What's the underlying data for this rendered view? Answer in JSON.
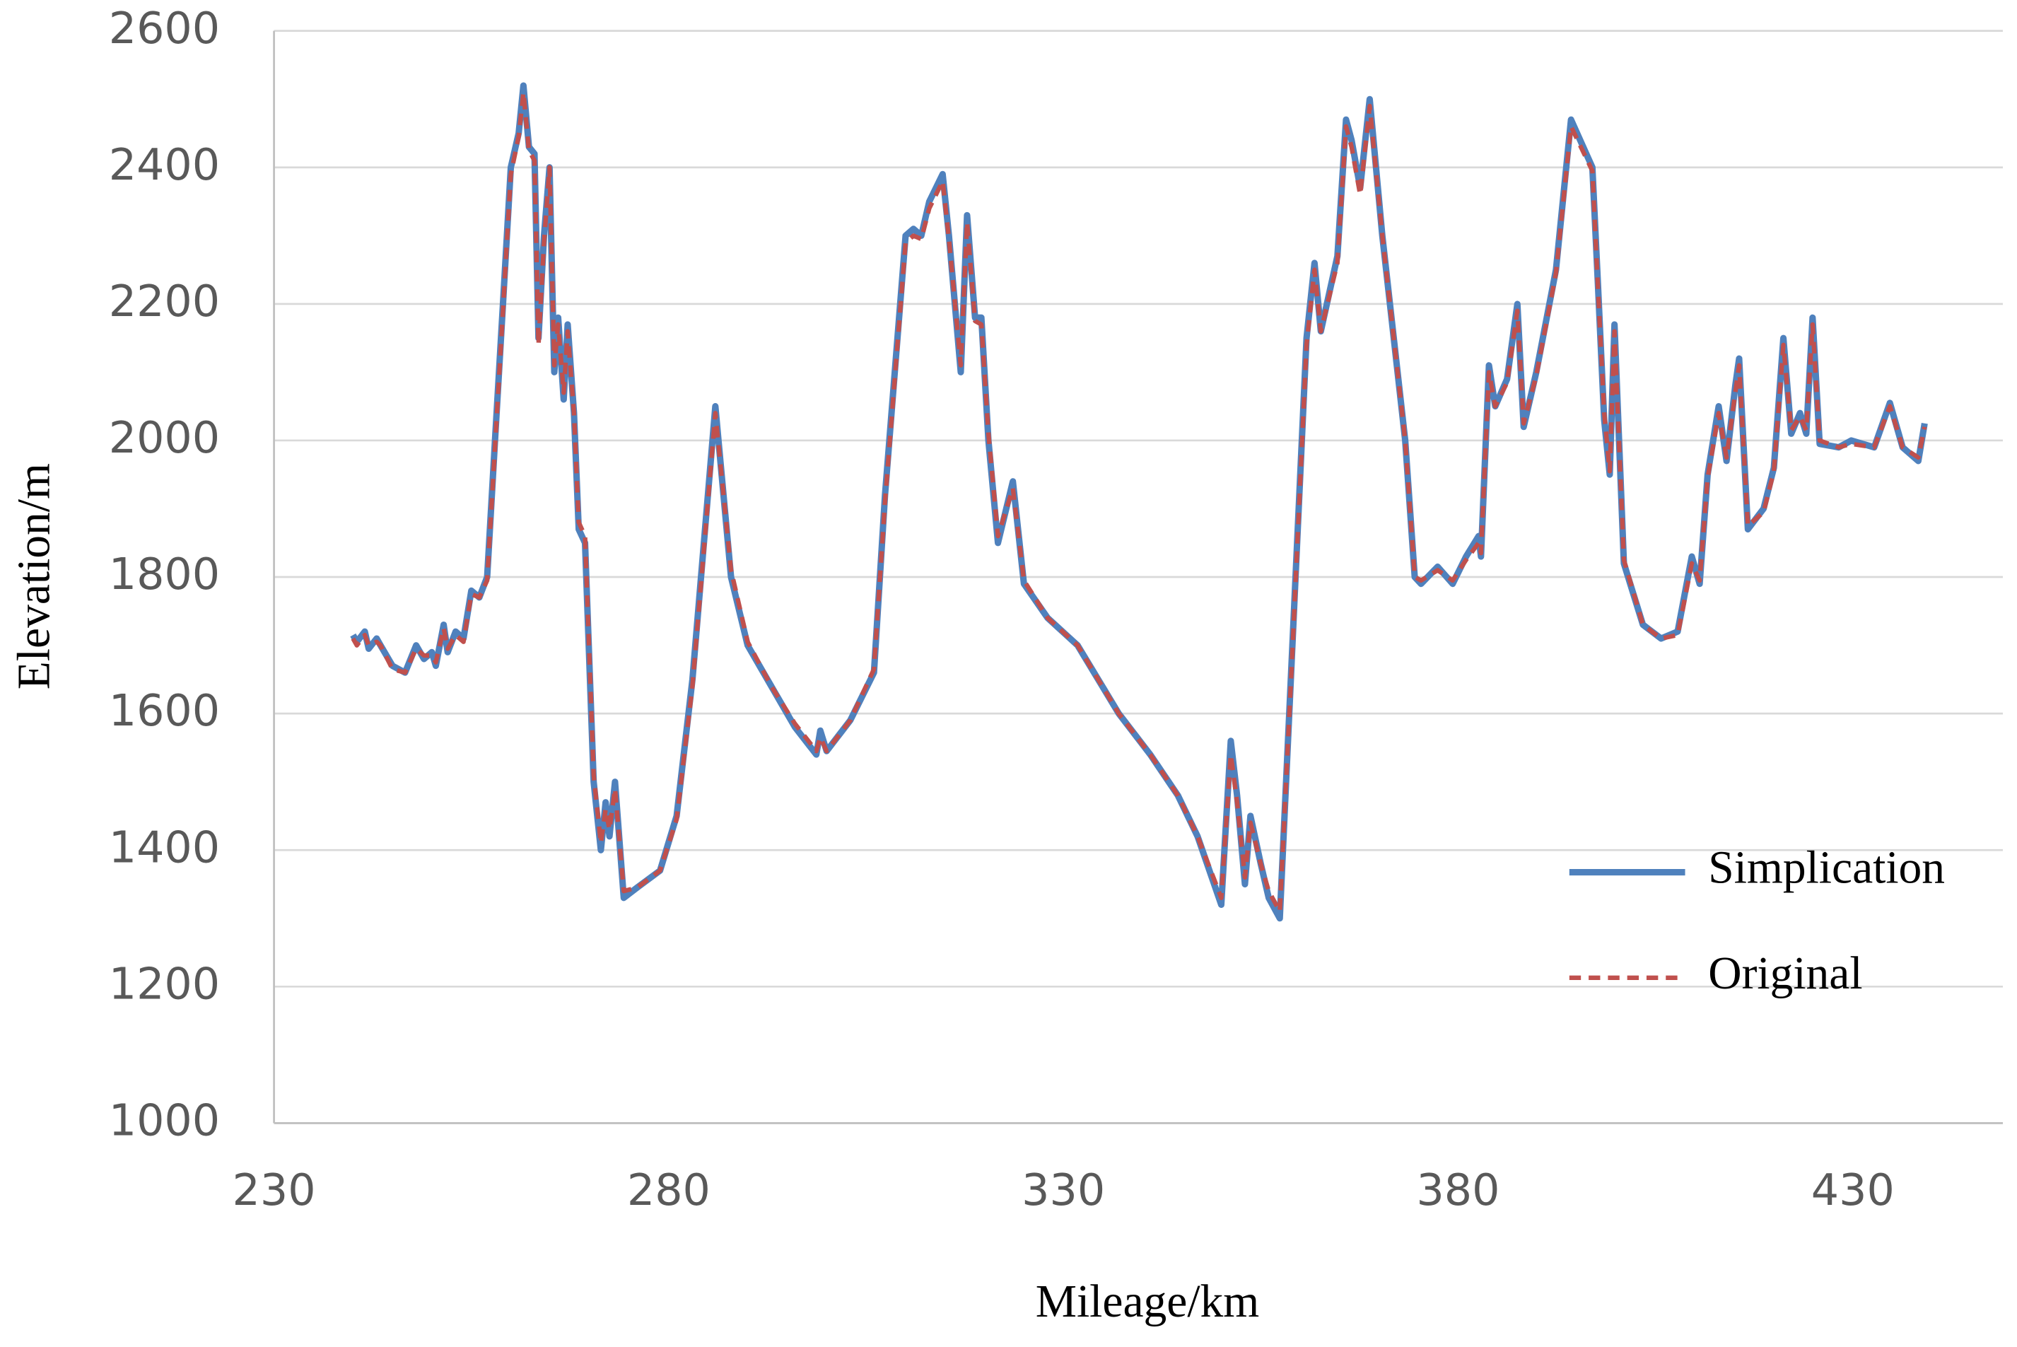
{
  "chart_data": {
    "type": "line",
    "x_label": "Mileage/km",
    "y_label": "Elevation/m",
    "x": [
      240,
      240.5,
      241.5,
      242,
      243,
      243.5,
      245,
      246.6,
      248,
      249,
      250,
      250.5,
      251.5,
      252,
      253,
      254,
      255,
      256,
      257,
      258,
      259,
      260,
      261,
      261.6,
      262.3,
      263,
      263.5,
      264.2,
      264.9,
      265.5,
      266,
      266.7,
      267.2,
      268,
      268.6,
      269.4,
      270.5,
      271.4,
      272,
      272.5,
      273.2,
      274.3,
      276,
      278.9,
      281,
      283,
      285.9,
      287.9,
      290,
      293,
      296,
      298.7,
      299.2,
      300,
      303,
      306,
      307.4,
      310,
      311,
      312,
      313,
      314.7,
      315.5,
      317,
      317.8,
      318.8,
      319.6,
      320.5,
      321.7,
      323.6,
      325,
      328,
      331.8,
      337,
      341,
      344.5,
      347,
      350,
      351.2,
      352,
      353,
      353.7,
      355,
      356,
      357.4,
      359,
      360.8,
      361.8,
      362.6,
      364.7,
      365.8,
      366.5,
      367.6,
      368.8,
      370.4,
      373.3,
      374.5,
      375.3,
      377.4,
      379.3,
      381,
      382.6,
      382.9,
      383.9,
      384.7,
      386.2,
      387.5,
      388.3,
      389.9,
      392.4,
      394.3,
      397,
      397.7,
      398.5,
      399.2,
      399.8,
      401,
      403.4,
      405.7,
      407.8,
      409.6,
      410.6,
      411.6,
      413,
      414,
      415.1,
      415.6,
      416.7,
      418.7,
      420,
      421.2,
      422.2,
      423.3,
      424.1,
      424.9,
      425.8,
      428.2,
      429.8,
      432.7,
      434.7,
      436.3,
      438.3,
      439.1
    ],
    "series": [
      {
        "name": "Simplication",
        "color": "#4f81bd",
        "values": [
          1715,
          1705,
          1720,
          1695,
          1710,
          1700,
          1670,
          1660,
          1700,
          1680,
          1690,
          1670,
          1730,
          1690,
          1720,
          1710,
          1780,
          1770,
          1800,
          2000,
          2200,
          2400,
          2450,
          2520,
          2430,
          2420,
          2150,
          2300,
          2400,
          2100,
          2180,
          2060,
          2170,
          2040,
          1870,
          1850,
          1500,
          1400,
          1470,
          1420,
          1500,
          1330,
          1345,
          1370,
          1450,
          1650,
          2050,
          1800,
          1700,
          1640,
          1580,
          1540,
          1575,
          1545,
          1590,
          1660,
          1920,
          2300,
          2310,
          2300,
          2350,
          2390,
          2300,
          2100,
          2330,
          2180,
          2180,
          2000,
          1850,
          1940,
          1790,
          1740,
          1700,
          1600,
          1540,
          1480,
          1420,
          1320,
          1560,
          1480,
          1350,
          1450,
          1380,
          1330,
          1300,
          1700,
          2150,
          2260,
          2160,
          2270,
          2470,
          2440,
          2370,
          2500,
          2300,
          2000,
          1800,
          1790,
          1815,
          1790,
          1830,
          1860,
          1830,
          2110,
          2050,
          2090,
          2200,
          2020,
          2100,
          2250,
          2470,
          2400,
          2230,
          2030,
          1950,
          2170,
          1820,
          1730,
          1710,
          1720,
          1830,
          1790,
          1950,
          2050,
          1970,
          2080,
          2120,
          1870,
          1900,
          1960,
          2150,
          2010,
          2040,
          2010,
          2180,
          1995,
          1990,
          2000,
          1990,
          2055,
          1990,
          1970,
          2025
        ]
      },
      {
        "name": "Original",
        "color": "#c0504d",
        "values": [
          1710,
          1700,
          1715,
          1700,
          1705,
          1700,
          1665,
          1660,
          1695,
          1685,
          1685,
          1675,
          1725,
          1695,
          1715,
          1705,
          1775,
          1770,
          1795,
          1990,
          2190,
          2390,
          2445,
          2510,
          2425,
          2410,
          2140,
          2290,
          2400,
          2110,
          2170,
          2070,
          2160,
          2040,
          1880,
          1860,
          1510,
          1410,
          1460,
          1430,
          1490,
          1340,
          1345,
          1370,
          1445,
          1640,
          2040,
          1810,
          1705,
          1640,
          1585,
          1545,
          1565,
          1545,
          1590,
          1665,
          1910,
          2290,
          2300,
          2295,
          2340,
          2380,
          2295,
          2110,
          2320,
          2175,
          2170,
          2010,
          1860,
          1930,
          1795,
          1740,
          1700,
          1600,
          1540,
          1480,
          1420,
          1330,
          1540,
          1470,
          1360,
          1440,
          1380,
          1340,
          1310,
          1690,
          2140,
          2250,
          2160,
          2260,
          2460,
          2430,
          2360,
          2490,
          2300,
          2000,
          1800,
          1795,
          1810,
          1795,
          1825,
          1850,
          1835,
          2100,
          2050,
          2085,
          2190,
          2025,
          2095,
          2245,
          2460,
          2395,
          2225,
          2040,
          1955,
          2160,
          1825,
          1730,
          1710,
          1715,
          1820,
          1795,
          1945,
          2040,
          1975,
          2070,
          2110,
          1875,
          1895,
          1955,
          2140,
          2015,
          2035,
          2015,
          2170,
          2000,
          1990,
          1995,
          1990,
          2050,
          1990,
          1975,
          2020
        ]
      }
    ],
    "xlim": [
      230,
      449
    ],
    "xticks": [
      230,
      280,
      330,
      380,
      430
    ],
    "ylim": [
      1000,
      2600
    ],
    "yticks": [
      1000,
      1200,
      1400,
      1600,
      1800,
      2000,
      2200,
      2400,
      2600
    ],
    "grid": true,
    "legend": "lower right"
  }
}
